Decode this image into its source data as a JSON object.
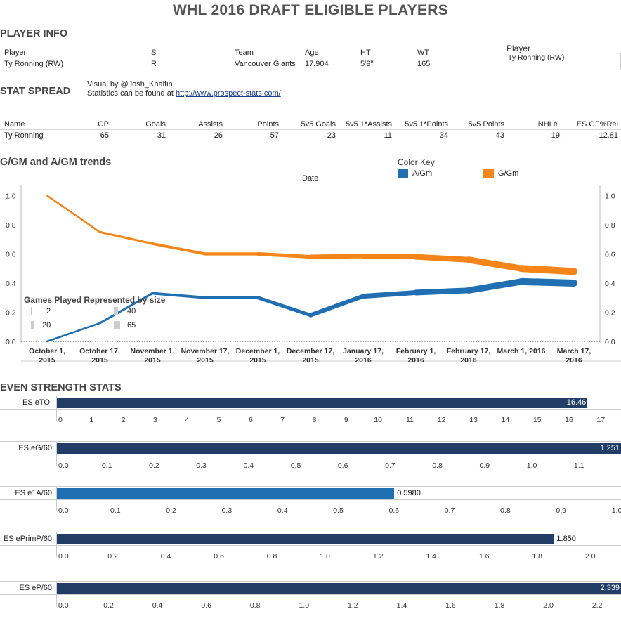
{
  "title": "WHL 2016 DRAFT ELIGIBLE PLAYERS",
  "player_info": {
    "heading": "PLAYER INFO",
    "columns": [
      "Player",
      "S",
      "Team",
      "Age",
      "HT",
      "WT"
    ],
    "row": [
      "Ty Ronning (RW)",
      "R",
      "Vancouver Giants",
      "17.904",
      "5'9\"",
      "165"
    ],
    "filter_label": "Player",
    "filter_value": "Ty Ronning (RW)"
  },
  "stat_spread": {
    "heading": "STAT SPREAD",
    "credit": "Visual by @Josh_Khalfin",
    "source_prefix": "Statistics can be found at ",
    "source_link": "http://www.prospect-stats.com/",
    "columns": [
      "Name",
      "GP",
      "Goals",
      "Assists",
      "Points",
      "5v5 Goals",
      "5v5 1*Assists",
      "5v5 1*Points",
      "5v5 Points",
      "NHLe .",
      "ES GF%Rel"
    ],
    "row": [
      "Ty Ronning",
      "65",
      "31",
      "26",
      "57",
      "23",
      "11",
      "34",
      "43",
      "19.",
      "12.81"
    ]
  },
  "trends": {
    "heading": "G/GM and A/GM trends",
    "axis_title": "Date",
    "color_key_title": "Color Key",
    "color_key": [
      {
        "label": "A/Gm",
        "color": "#1f6fb2"
      },
      {
        "label": "G/Gm",
        "color": "#f58518"
      }
    ],
    "size_legend_title": "Games Played Represented by size",
    "size_legend": [
      "2",
      "40",
      "20",
      "65"
    ]
  },
  "chart_data": {
    "type": "line",
    "x": [
      "October 1, 2015",
      "October 17, 2015",
      "November 1, 2015",
      "November 17, 2015",
      "December 1, 2015",
      "December 17, 2015",
      "January 17, 2016",
      "February 1, 2016",
      "February 17, 2016",
      "March 1, 2016",
      "March 17, 2016"
    ],
    "x_tick_lines": [
      [
        "October 1,",
        "2015"
      ],
      [
        "October 17,",
        "2015"
      ],
      [
        "November 1,",
        "2015"
      ],
      [
        "November 17,",
        "2015"
      ],
      [
        "December 1,",
        "2015"
      ],
      [
        "December 17,",
        "2015"
      ],
      [
        "January 17,",
        "2016"
      ],
      [
        "February 1,",
        "2016"
      ],
      [
        "February 17,",
        "2016"
      ],
      [
        "March 1, 2016",
        ""
      ],
      [
        "March 17,",
        "2016"
      ]
    ],
    "series": [
      {
        "name": "G/Gm",
        "color": "#f58518",
        "values": [
          1.0,
          0.75,
          0.67,
          0.6,
          0.6,
          0.58,
          0.585,
          0.58,
          0.56,
          0.5,
          0.48
        ],
        "games_played": [
          2,
          8,
          12,
          18,
          22,
          27,
          35,
          42,
          50,
          58,
          65
        ]
      },
      {
        "name": "A/Gm",
        "color": "#1f6fb2",
        "values": [
          0.0,
          0.125,
          0.33,
          0.3,
          0.3,
          0.18,
          0.31,
          0.335,
          0.35,
          0.41,
          0.4
        ],
        "games_played": [
          2,
          8,
          12,
          18,
          22,
          27,
          35,
          42,
          50,
          58,
          65
        ]
      }
    ],
    "ylim": [
      0,
      1.05
    ],
    "y_ticks": [
      "1.0",
      "0.8",
      "0.6",
      "0.4",
      "0.2",
      "0.0"
    ]
  },
  "even_strength": {
    "heading": "EVEN STRENGTH STATS",
    "bars": [
      {
        "label": "ES eTOI",
        "value": 16.46,
        "value_label": "16.46",
        "max": 17.5,
        "ticks": [
          "0",
          "1",
          "2",
          "3",
          "4",
          "5",
          "6",
          "7",
          "8",
          "9",
          "10",
          "11",
          "12",
          "13",
          "14",
          "15",
          "16",
          "17"
        ],
        "tick_values": [
          0,
          1,
          2,
          3,
          4,
          5,
          6,
          7,
          8,
          9,
          10,
          11,
          12,
          13,
          14,
          15,
          16,
          17
        ],
        "color": "#233e66"
      },
      {
        "label": "ES eG/60",
        "value": 1.251,
        "value_label": "1.251",
        "max": 1.18,
        "ticks": [
          "0.0",
          "0.1",
          "0.2",
          "0.3",
          "0.4",
          "0.5",
          "0.6",
          "0.7",
          "0.8",
          "0.9",
          "1.0",
          "1.1"
        ],
        "tick_values": [
          0,
          0.1,
          0.2,
          0.3,
          0.4,
          0.5,
          0.6,
          0.7,
          0.8,
          0.9,
          1.0,
          1.1
        ],
        "color": "#233e66"
      },
      {
        "label": "ES e1A/60",
        "value": 0.598,
        "value_label": "0.5980",
        "max": 1.0,
        "ticks": [
          "0.0",
          "0.1",
          "0.2",
          "0.3",
          "0.4",
          "0.5",
          "0.6",
          "0.7",
          "0.8",
          "0.9",
          "1.0"
        ],
        "tick_values": [
          0,
          0.1,
          0.2,
          0.3,
          0.4,
          0.5,
          0.6,
          0.7,
          0.8,
          0.9,
          1.0
        ],
        "color": "#1f6fb2"
      },
      {
        "label": "ES ePrimP/60",
        "value": 1.85,
        "value_label": "1.850",
        "max": 2.1,
        "ticks": [
          "0.0",
          "0.2",
          "0.4",
          "0.6",
          "0.8",
          "1.0",
          "1.2",
          "1.4",
          "1.6",
          "1.8",
          "2.0"
        ],
        "tick_values": [
          0,
          0.2,
          0.4,
          0.6,
          0.8,
          1.0,
          1.2,
          1.4,
          1.6,
          1.8,
          2.0
        ],
        "color": "#233e66"
      },
      {
        "label": "ES eP/60",
        "value": 2.339,
        "value_label": "2.339",
        "max": 2.28,
        "ticks": [
          "0.0",
          "0.2",
          "0.4",
          "0.6",
          "0.8",
          "1.0",
          "1.2",
          "1.4",
          "1.6",
          "1.8",
          "2.0",
          "2.2"
        ],
        "tick_values": [
          0,
          0.2,
          0.4,
          0.6,
          0.8,
          1.0,
          1.2,
          1.4,
          1.6,
          1.8,
          2.0,
          2.2
        ],
        "color": "#233e66"
      }
    ]
  }
}
